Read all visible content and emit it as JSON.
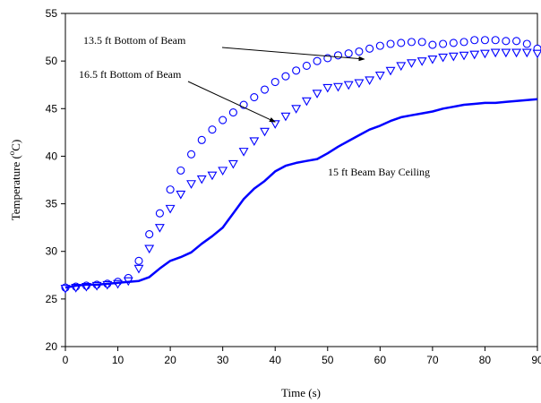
{
  "chart_data": {
    "type": "line",
    "xlabel": "Time (s)",
    "ylabel_prefix": "Temperature (",
    "ylabel_sup": "o",
    "ylabel_suffix": "C)",
    "xlim": [
      0,
      90
    ],
    "ylim": [
      20,
      55
    ],
    "x_ticks": [
      0,
      10,
      20,
      30,
      40,
      50,
      60,
      70,
      80,
      90
    ],
    "y_ticks": [
      20,
      25,
      30,
      35,
      40,
      45,
      50,
      55
    ],
    "grid": false,
    "legend": "none",
    "annotations": [
      {
        "text": "13.5 ft Bottom of Beam",
        "series": 0,
        "arrow_to": [
          57,
          50.2
        ]
      },
      {
        "text": "16.5 ft Bottom of Beam",
        "series": 1,
        "arrow_to": [
          40,
          43.6
        ]
      },
      {
        "text": "15 ft Beam Bay Ceiling",
        "series": 2
      }
    ],
    "series": [
      {
        "marker": "circle",
        "color": "#0000ff",
        "x": [
          0,
          2,
          4,
          6,
          8,
          10,
          12,
          14,
          16,
          18,
          20,
          22,
          24,
          26,
          28,
          30,
          32,
          34,
          36,
          38,
          40,
          42,
          44,
          46,
          48,
          50,
          52,
          54,
          56,
          58,
          60,
          62,
          64,
          66,
          68,
          70,
          72,
          74,
          76,
          78,
          80,
          82,
          84,
          86,
          88,
          90
        ],
        "y": [
          26.2,
          26.3,
          26.4,
          26.5,
          26.6,
          26.8,
          27.2,
          29.0,
          31.8,
          34.0,
          36.5,
          38.5,
          40.2,
          41.7,
          42.8,
          43.8,
          44.6,
          45.4,
          46.2,
          47.0,
          47.8,
          48.4,
          49.0,
          49.5,
          50.0,
          50.3,
          50.6,
          50.8,
          51.0,
          51.3,
          51.6,
          51.8,
          51.9,
          52.0,
          52.0,
          51.7,
          51.8,
          51.9,
          52.0,
          52.2,
          52.2,
          52.2,
          52.1,
          52.1,
          51.8,
          51.3
        ]
      },
      {
        "marker": "triangle-down",
        "color": "#0000ff",
        "x": [
          0,
          2,
          4,
          6,
          8,
          10,
          12,
          14,
          16,
          18,
          20,
          22,
          24,
          26,
          28,
          30,
          32,
          34,
          36,
          38,
          40,
          42,
          44,
          46,
          48,
          50,
          52,
          54,
          56,
          58,
          60,
          62,
          64,
          66,
          68,
          70,
          72,
          74,
          76,
          78,
          80,
          82,
          84,
          86,
          88,
          90
        ],
        "y": [
          26.1,
          26.2,
          26.3,
          26.4,
          26.5,
          26.6,
          26.9,
          28.2,
          30.3,
          32.5,
          34.5,
          36.0,
          37.1,
          37.6,
          38.0,
          38.5,
          39.2,
          40.5,
          41.6,
          42.6,
          43.4,
          44.2,
          45.0,
          45.8,
          46.6,
          47.2,
          47.3,
          47.5,
          47.7,
          48.0,
          48.5,
          49.0,
          49.5,
          49.8,
          50.0,
          50.2,
          50.4,
          50.5,
          50.6,
          50.7,
          50.8,
          50.9,
          50.9,
          50.9,
          50.9,
          50.8
        ]
      },
      {
        "marker": "none",
        "color": "#0000ff",
        "x": [
          0,
          2,
          4,
          6,
          8,
          10,
          12,
          14,
          16,
          18,
          20,
          22,
          24,
          26,
          28,
          30,
          32,
          34,
          36,
          38,
          40,
          42,
          44,
          46,
          48,
          50,
          52,
          54,
          56,
          58,
          60,
          62,
          64,
          66,
          68,
          70,
          72,
          74,
          76,
          78,
          80,
          82,
          84,
          86,
          88,
          90
        ],
        "y": [
          26.2,
          26.4,
          26.5,
          26.5,
          26.6,
          26.7,
          26.8,
          26.9,
          27.3,
          28.2,
          29.0,
          29.4,
          29.9,
          30.8,
          31.6,
          32.5,
          34.0,
          35.5,
          36.6,
          37.4,
          38.4,
          39.0,
          39.3,
          39.5,
          39.7,
          40.3,
          41.0,
          41.6,
          42.2,
          42.8,
          43.2,
          43.7,
          44.1,
          44.3,
          44.5,
          44.7,
          45.0,
          45.2,
          45.4,
          45.5,
          45.6,
          45.6,
          45.7,
          45.8,
          45.9,
          46.0
        ]
      }
    ]
  }
}
